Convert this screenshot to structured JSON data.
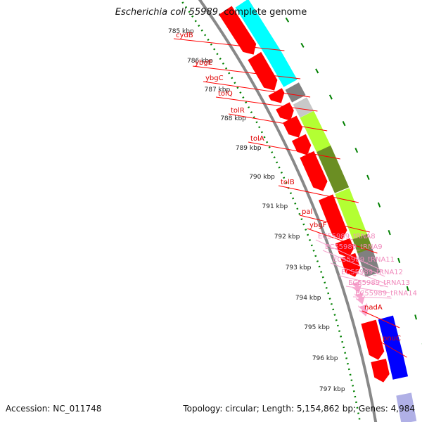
{
  "title": {
    "organism": "Escherichia coli 55989",
    "suffix": ", complete genome"
  },
  "footer": {
    "accession_label": "Accession:",
    "accession": "NC_011748",
    "topology_label": "Topology:",
    "topology": "circular",
    "length_label": "Length:",
    "length": "5,154,862 bp",
    "genes_label": "Genes:",
    "genes": "4,984"
  },
  "colors": {
    "cds": "#ff0000",
    "trna": "#f7a6cf",
    "cog_cyan": "#00ffff",
    "cog_lime": "#b3ff33",
    "cog_olive": "#6b8e23",
    "cog_gray": "#808080",
    "cog_lightgray": "#c8c8c8",
    "cog_blue": "#0000ff",
    "backbone": "#888888",
    "ticks": "#008000"
  },
  "ruler_labels": [
    "785 kbp",
    "786 kbp",
    "787 kbp",
    "788 kbp",
    "789 kbp",
    "790 kbp",
    "791 kbp",
    "792 kbp",
    "793 kbp",
    "794 kbp",
    "795 kbp",
    "796 kbp",
    "797 kbp"
  ],
  "genes": [
    {
      "name": "cydB",
      "kind": "cds"
    },
    {
      "name": "ybgE",
      "kind": "cds"
    },
    {
      "name": "ybgC",
      "kind": "cds"
    },
    {
      "name": "tolQ",
      "kind": "cds"
    },
    {
      "name": "tolR",
      "kind": "cds"
    },
    {
      "name": "tolA",
      "kind": "cds"
    },
    {
      "name": "tolB",
      "kind": "cds"
    },
    {
      "name": "pal",
      "kind": "cds"
    },
    {
      "name": "ybgF",
      "kind": "cds"
    },
    {
      "name": "EC55989_tRNA8",
      "kind": "trna"
    },
    {
      "name": "EC55989_tRNA9",
      "kind": "trna"
    },
    {
      "name": "EC55989_tRNA11",
      "kind": "trna"
    },
    {
      "name": "EC55989_tRNA12",
      "kind": "trna"
    },
    {
      "name": "EC55989_tRNA13",
      "kind": "trna"
    },
    {
      "name": "EC55989_tRNA14",
      "kind": "trna"
    },
    {
      "name": "nadA",
      "kind": "cds"
    },
    {
      "name": "pnuC",
      "kind": "cds"
    }
  ]
}
